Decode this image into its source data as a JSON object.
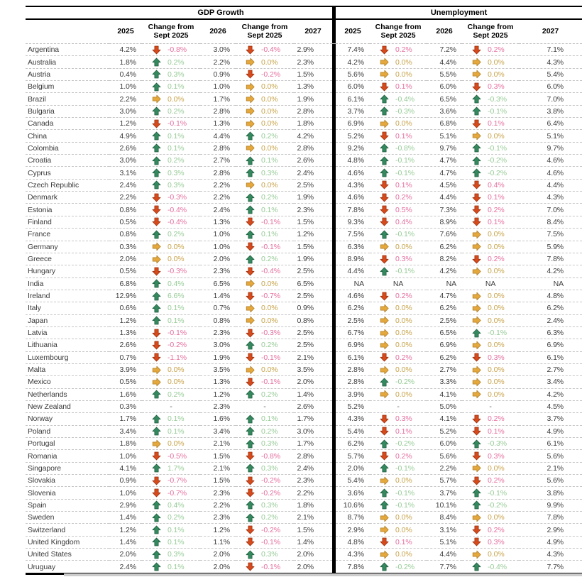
{
  "chart_data": {
    "type": "table",
    "section_titles": [
      "GDP Growth",
      "Unemployment"
    ],
    "column_headers": {
      "y2025": "2025",
      "chg_line1": "Change from",
      "chg_line2": "Sept 2025",
      "y2026": "2026",
      "y2027": "2027"
    },
    "icon_legend": {
      "up": "green up arrow (favorable revision)",
      "down": "red down arrow (unfavorable revision)",
      "flat": "yellow right arrow (no change)"
    },
    "colors": {
      "up_arrow": "#35895f",
      "up_arrow_edge": "#1e5e3e",
      "down_arrow": "#d74a1b",
      "down_arrow_edge": "#9c3110",
      "flat_arrow": "#e5a83d",
      "flat_arrow_edge": "#b07d22",
      "up_text": "#97cb97",
      "down_text": "#e56f9f",
      "flat_text": "#c8a34a",
      "value_text": "#3d3d3d"
    },
    "rows": [
      {
        "country": "Argentina",
        "gdp": [
          "4.2%",
          "down",
          "-0.8%",
          "3.0%",
          "down",
          "-0.4%",
          "2.9%"
        ],
        "unemp": [
          "7.4%",
          "down",
          "0.2%",
          "7.2%",
          "down",
          "0.2%",
          "7.1%"
        ]
      },
      {
        "country": "Australia",
        "gdp": [
          "1.8%",
          "up",
          "0.2%",
          "2.2%",
          "flat",
          "0.0%",
          "2.3%"
        ],
        "unemp": [
          "4.2%",
          "flat",
          "0.0%",
          "4.4%",
          "flat",
          "0.0%",
          "4.3%"
        ]
      },
      {
        "country": "Austria",
        "gdp": [
          "0.4%",
          "up",
          "0.3%",
          "0.9%",
          "down",
          "-0.2%",
          "1.5%"
        ],
        "unemp": [
          "5.6%",
          "flat",
          "0.0%",
          "5.5%",
          "flat",
          "0.0%",
          "5.4%"
        ]
      },
      {
        "country": "Belgium",
        "gdp": [
          "1.0%",
          "up",
          "0.1%",
          "1.0%",
          "flat",
          "0.0%",
          "1.3%"
        ],
        "unemp": [
          "6.0%",
          "down",
          "0.1%",
          "6.0%",
          "down",
          "0.3%",
          "6.0%"
        ]
      },
      {
        "country": "Brazil",
        "gdp": [
          "2.2%",
          "flat",
          "0.0%",
          "1.7%",
          "flat",
          "0.0%",
          "1.9%"
        ],
        "unemp": [
          "6.1%",
          "up",
          "-0.4%",
          "6.5%",
          "up",
          "-0.3%",
          "7.0%"
        ]
      },
      {
        "country": "Bulgaria",
        "gdp": [
          "3.0%",
          "up",
          "0.2%",
          "2.8%",
          "flat",
          "0.0%",
          "2.8%"
        ],
        "unemp": [
          "3.7%",
          "up",
          "-0.3%",
          "3.6%",
          "up",
          "-0.1%",
          "3.8%"
        ]
      },
      {
        "country": "Canada",
        "gdp": [
          "1.2%",
          "down",
          "-0.1%",
          "1.3%",
          "flat",
          "0.0%",
          "1.8%"
        ],
        "unemp": [
          "6.9%",
          "flat",
          "0.0%",
          "6.8%",
          "down",
          "0.1%",
          "6.4%"
        ]
      },
      {
        "country": "China",
        "gdp": [
          "4.9%",
          "up",
          "0.1%",
          "4.4%",
          "up",
          "0.2%",
          "4.2%"
        ],
        "unemp": [
          "5.2%",
          "down",
          "0.1%",
          "5.1%",
          "flat",
          "0.0%",
          "5.1%"
        ]
      },
      {
        "country": "Colombia",
        "gdp": [
          "2.6%",
          "up",
          "0.1%",
          "2.8%",
          "flat",
          "0.0%",
          "2.8%"
        ],
        "unemp": [
          "9.2%",
          "up",
          "-0.8%",
          "9.7%",
          "up",
          "-0.1%",
          "9.7%"
        ]
      },
      {
        "country": "Croatia",
        "gdp": [
          "3.0%",
          "up",
          "0.2%",
          "2.7%",
          "up",
          "0.1%",
          "2.6%"
        ],
        "unemp": [
          "4.8%",
          "up",
          "-0.1%",
          "4.7%",
          "up",
          "-0.2%",
          "4.6%"
        ]
      },
      {
        "country": "Cyprus",
        "gdp": [
          "3.1%",
          "up",
          "0.3%",
          "2.8%",
          "up",
          "0.3%",
          "2.4%"
        ],
        "unemp": [
          "4.6%",
          "up",
          "-0.1%",
          "4.7%",
          "up",
          "-0.2%",
          "4.6%"
        ]
      },
      {
        "country": "Czech Republic",
        "gdp": [
          "2.4%",
          "up",
          "0.3%",
          "2.2%",
          "flat",
          "0.0%",
          "2.5%"
        ],
        "unemp": [
          "4.3%",
          "down",
          "0.1%",
          "4.5%",
          "down",
          "0.4%",
          "4.4%"
        ]
      },
      {
        "country": "Denmark",
        "gdp": [
          "2.2%",
          "down",
          "-0.3%",
          "2.2%",
          "up",
          "0.2%",
          "1.9%"
        ],
        "unemp": [
          "4.6%",
          "down",
          "0.2%",
          "4.4%",
          "down",
          "0.1%",
          "4.3%"
        ]
      },
      {
        "country": "Estonia",
        "gdp": [
          "0.8%",
          "down",
          "-0.4%",
          "2.4%",
          "up",
          "0.1%",
          "2.3%"
        ],
        "unemp": [
          "7.8%",
          "down",
          "0.5%",
          "7.3%",
          "down",
          "0.2%",
          "7.0%"
        ]
      },
      {
        "country": "Finland",
        "gdp": [
          "0.5%",
          "down",
          "-0.4%",
          "1.3%",
          "down",
          "-0.1%",
          "1.5%"
        ],
        "unemp": [
          "9.3%",
          "down",
          "0.4%",
          "8.9%",
          "down",
          "0.1%",
          "8.4%"
        ]
      },
      {
        "country": "France",
        "gdp": [
          "0.8%",
          "up",
          "0.2%",
          "1.0%",
          "up",
          "0.1%",
          "1.2%"
        ],
        "unemp": [
          "7.5%",
          "up",
          "-0.1%",
          "7.6%",
          "flat",
          "0.0%",
          "7.5%"
        ]
      },
      {
        "country": "Germany",
        "gdp": [
          "0.3%",
          "flat",
          "0.0%",
          "1.0%",
          "down",
          "-0.1%",
          "1.5%"
        ],
        "unemp": [
          "6.3%",
          "flat",
          "0.0%",
          "6.2%",
          "flat",
          "0.0%",
          "5.9%"
        ]
      },
      {
        "country": "Greece",
        "gdp": [
          "2.0%",
          "flat",
          "0.0%",
          "2.0%",
          "up",
          "0.2%",
          "1.9%"
        ],
        "unemp": [
          "8.9%",
          "down",
          "0.3%",
          "8.2%",
          "down",
          "0.2%",
          "7.8%"
        ]
      },
      {
        "country": "Hungary",
        "gdp": [
          "0.5%",
          "down",
          "-0.3%",
          "2.3%",
          "down",
          "-0.4%",
          "2.5%"
        ],
        "unemp": [
          "4.4%",
          "up",
          "-0.1%",
          "4.2%",
          "flat",
          "0.0%",
          "4.2%"
        ]
      },
      {
        "country": "India",
        "gdp": [
          "6.8%",
          "up",
          "0.4%",
          "6.5%",
          "flat",
          "0.0%",
          "6.5%"
        ],
        "unemp": [
          "NA",
          "na",
          "NA",
          "NA",
          "na",
          "NA",
          "NA"
        ]
      },
      {
        "country": "Ireland",
        "gdp": [
          "12.9%",
          "up",
          "6.6%",
          "1.4%",
          "down",
          "-0.7%",
          "2.5%"
        ],
        "unemp": [
          "4.6%",
          "down",
          "0.2%",
          "4.7%",
          "flat",
          "0.0%",
          "4.8%"
        ]
      },
      {
        "country": "Italy",
        "gdp": [
          "0.6%",
          "up",
          "0.1%",
          "0.7%",
          "flat",
          "0.0%",
          "0.9%"
        ],
        "unemp": [
          "6.2%",
          "flat",
          "0.0%",
          "6.2%",
          "flat",
          "0.0%",
          "6.2%"
        ]
      },
      {
        "country": "Japan",
        "gdp": [
          "1.2%",
          "up",
          "0.1%",
          "0.8%",
          "flat",
          "0.0%",
          "0.8%"
        ],
        "unemp": [
          "2.5%",
          "flat",
          "0.0%",
          "2.5%",
          "flat",
          "0.0%",
          "2.4%"
        ]
      },
      {
        "country": "Latvia",
        "gdp": [
          "1.3%",
          "down",
          "-0.1%",
          "2.3%",
          "down",
          "-0.3%",
          "2.5%"
        ],
        "unemp": [
          "6.7%",
          "flat",
          "0.0%",
          "6.5%",
          "up",
          "-0.1%",
          "6.3%"
        ]
      },
      {
        "country": "Lithuania",
        "gdp": [
          "2.6%",
          "down",
          "-0.2%",
          "3.0%",
          "up",
          "0.2%",
          "2.5%"
        ],
        "unemp": [
          "6.9%",
          "flat",
          "0.0%",
          "6.9%",
          "flat",
          "0.0%",
          "6.9%"
        ]
      },
      {
        "country": "Luxembourg",
        "gdp": [
          "0.7%",
          "down",
          "-1.1%",
          "1.9%",
          "down",
          "-0.1%",
          "2.1%"
        ],
        "unemp": [
          "6.1%",
          "down",
          "0.2%",
          "6.2%",
          "down",
          "0.3%",
          "6.1%"
        ]
      },
      {
        "country": "Malta",
        "gdp": [
          "3.9%",
          "flat",
          "0.0%",
          "3.5%",
          "flat",
          "0.0%",
          "3.5%"
        ],
        "unemp": [
          "2.8%",
          "flat",
          "0.0%",
          "2.7%",
          "flat",
          "0.0%",
          "2.7%"
        ]
      },
      {
        "country": "Mexico",
        "gdp": [
          "0.5%",
          "flat",
          "0.0%",
          "1.3%",
          "down",
          "-0.1%",
          "2.0%"
        ],
        "unemp": [
          "2.8%",
          "up",
          "-0.2%",
          "3.3%",
          "flat",
          "0.0%",
          "3.4%"
        ]
      },
      {
        "country": "Netherlands",
        "gdp": [
          "1.6%",
          "up",
          "0.2%",
          "1.2%",
          "up",
          "0.2%",
          "1.4%"
        ],
        "unemp": [
          "3.9%",
          "flat",
          "0.0%",
          "4.1%",
          "flat",
          "0.0%",
          "4.2%"
        ]
      },
      {
        "country": "New Zealand",
        "gdp": [
          "0.3%",
          "none",
          "-",
          "2.3%",
          "none",
          "-",
          "2.6%"
        ],
        "unemp": [
          "5.2%",
          "none",
          "-",
          "5.0%",
          "none",
          "-",
          "4.5%"
        ]
      },
      {
        "country": "Norway",
        "gdp": [
          "1.7%",
          "up",
          "0.1%",
          "1.6%",
          "up",
          "0.1%",
          "1.7%"
        ],
        "unemp": [
          "4.3%",
          "down",
          "0.3%",
          "4.1%",
          "down",
          "0.2%",
          "3.7%"
        ]
      },
      {
        "country": "Poland",
        "gdp": [
          "3.4%",
          "up",
          "0.1%",
          "3.4%",
          "up",
          "0.2%",
          "3.0%"
        ],
        "unemp": [
          "5.4%",
          "down",
          "0.1%",
          "5.2%",
          "down",
          "0.1%",
          "4.9%"
        ]
      },
      {
        "country": "Portugal",
        "gdp": [
          "1.8%",
          "flat",
          "0.0%",
          "2.1%",
          "up",
          "0.3%",
          "1.7%"
        ],
        "unemp": [
          "6.2%",
          "up",
          "-0.2%",
          "6.0%",
          "up",
          "-0.3%",
          "6.1%"
        ]
      },
      {
        "country": "Romania",
        "gdp": [
          "1.0%",
          "down",
          "-0.5%",
          "1.5%",
          "down",
          "-0.8%",
          "2.8%"
        ],
        "unemp": [
          "5.7%",
          "down",
          "0.2%",
          "5.6%",
          "down",
          "0.3%",
          "5.6%"
        ]
      },
      {
        "country": "Singapore",
        "gdp": [
          "4.1%",
          "up",
          "1.7%",
          "2.1%",
          "up",
          "0.3%",
          "2.4%"
        ],
        "unemp": [
          "2.0%",
          "up",
          "-0.1%",
          "2.2%",
          "flat",
          "0.0%",
          "2.1%"
        ]
      },
      {
        "country": "Slovakia",
        "gdp": [
          "0.9%",
          "down",
          "-0.7%",
          "1.5%",
          "down",
          "-0.2%",
          "2.3%"
        ],
        "unemp": [
          "5.4%",
          "flat",
          "0.0%",
          "5.7%",
          "down",
          "0.2%",
          "5.6%"
        ]
      },
      {
        "country": "Slovenia",
        "gdp": [
          "1.0%",
          "down",
          "-0.7%",
          "2.3%",
          "down",
          "-0.2%",
          "2.2%"
        ],
        "unemp": [
          "3.6%",
          "up",
          "-0.1%",
          "3.7%",
          "up",
          "-0.1%",
          "3.8%"
        ]
      },
      {
        "country": "Spain",
        "gdp": [
          "2.9%",
          "up",
          "0.4%",
          "2.2%",
          "up",
          "0.3%",
          "1.8%"
        ],
        "unemp": [
          "10.6%",
          "up",
          "-0.1%",
          "10.1%",
          "up",
          "-0.2%",
          "9.9%"
        ]
      },
      {
        "country": "Sweden",
        "gdp": [
          "1.4%",
          "up",
          "0.2%",
          "2.3%",
          "up",
          "0.2%",
          "2.1%"
        ],
        "unemp": [
          "8.7%",
          "flat",
          "0.0%",
          "8.4%",
          "flat",
          "0.0%",
          "7.8%"
        ]
      },
      {
        "country": "Switzerland",
        "gdp": [
          "1.2%",
          "up",
          "0.1%",
          "1.2%",
          "down",
          "-0.2%",
          "1.5%"
        ],
        "unemp": [
          "2.9%",
          "flat",
          "0.0%",
          "3.1%",
          "down",
          "0.2%",
          "2.9%"
        ]
      },
      {
        "country": "United Kingdom",
        "gdp": [
          "1.4%",
          "up",
          "0.1%",
          "1.1%",
          "down",
          "-0.1%",
          "1.4%"
        ],
        "unemp": [
          "4.8%",
          "down",
          "0.1%",
          "5.1%",
          "down",
          "0.3%",
          "4.9%"
        ]
      },
      {
        "country": "United States",
        "gdp": [
          "2.0%",
          "up",
          "0.3%",
          "2.0%",
          "up",
          "0.3%",
          "2.0%"
        ],
        "unemp": [
          "4.3%",
          "flat",
          "0.0%",
          "4.4%",
          "flat",
          "0.0%",
          "4.3%"
        ]
      },
      {
        "country": "Uruguay",
        "gdp": [
          "2.4%",
          "up",
          "0.1%",
          "2.0%",
          "down",
          "-0.1%",
          "2.0%"
        ],
        "unemp": [
          "7.8%",
          "up",
          "-0.2%",
          "7.7%",
          "up",
          "-0.4%",
          "7.7%"
        ]
      }
    ]
  }
}
